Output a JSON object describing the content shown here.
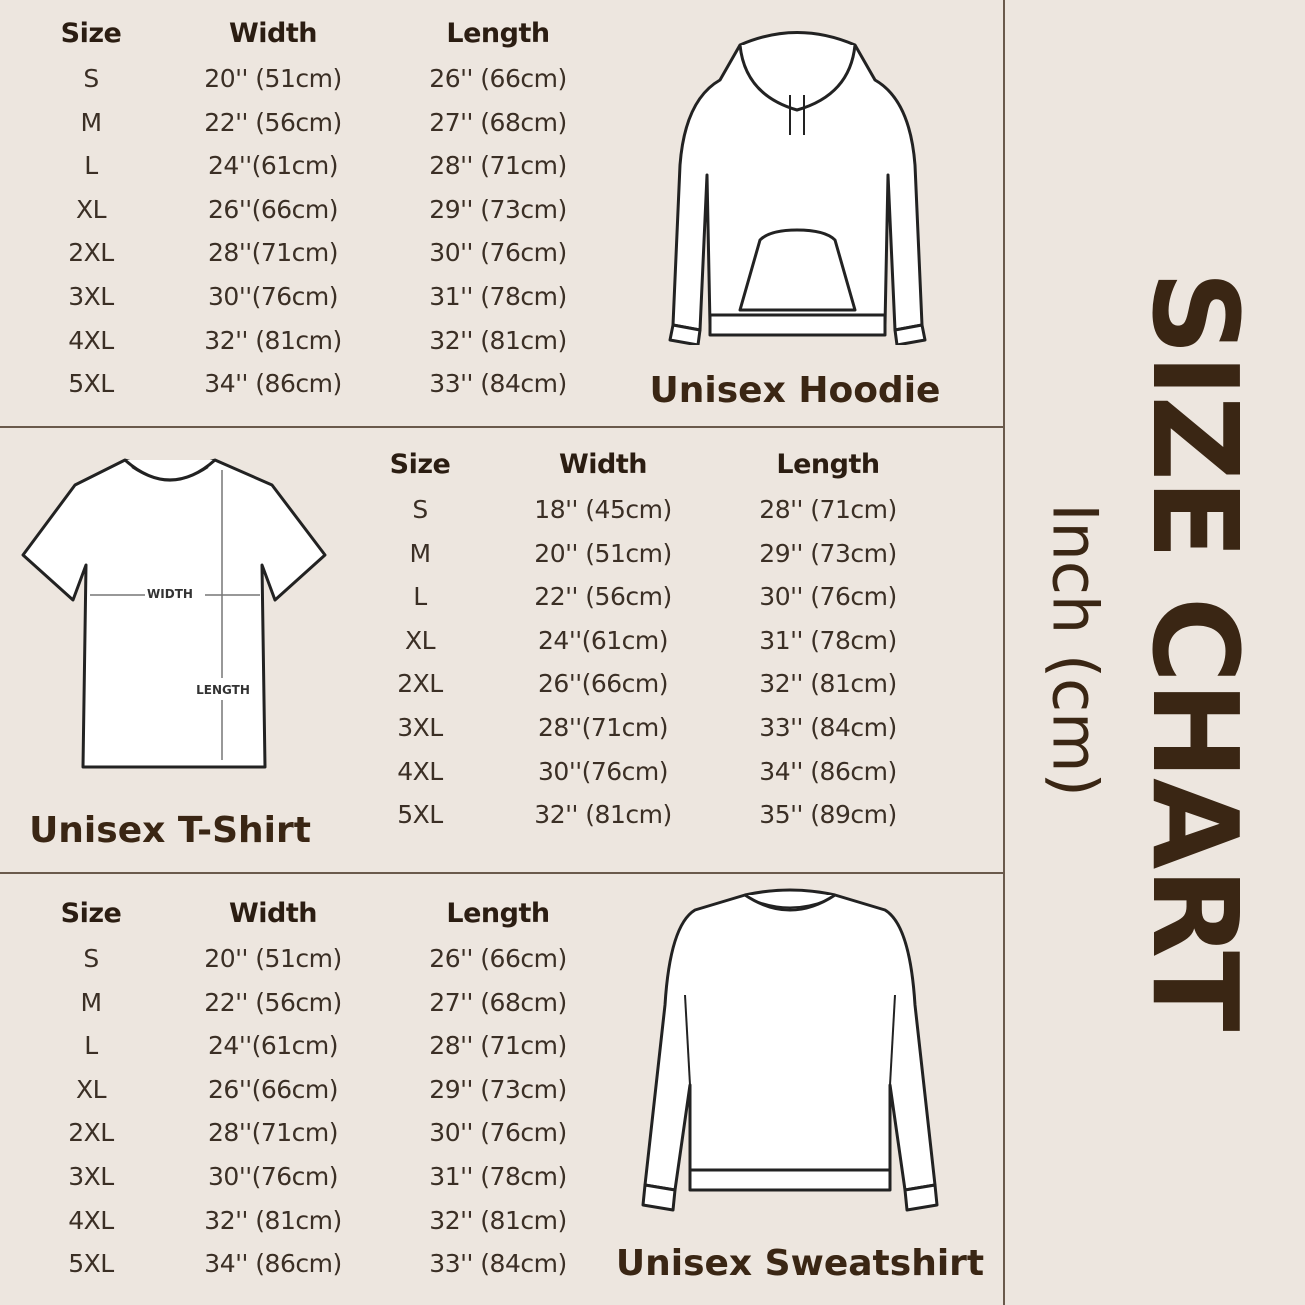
{
  "title": "SIZE CHART",
  "unit": "Inch (cm)",
  "colors": {
    "background": "#ede6df",
    "text": "#3b2f25",
    "title": "#3a2614",
    "divider": "#6a5a4c"
  },
  "sections": [
    {
      "name": "Unisex Hoodie",
      "headers": [
        "Size",
        "Width",
        "Length"
      ],
      "rows": [
        [
          "S",
          "20'' (51cm)",
          "26'' (66cm)"
        ],
        [
          "M",
          "22'' (56cm)",
          "27'' (68cm)"
        ],
        [
          "L",
          "24''(61cm)",
          "28'' (71cm)"
        ],
        [
          "XL",
          "26''(66cm)",
          "29'' (73cm)"
        ],
        [
          "2XL",
          "28''(71cm)",
          "30'' (76cm)"
        ],
        [
          "3XL",
          "30''(76cm)",
          "31'' (78cm)"
        ],
        [
          "4XL",
          "32'' (81cm)",
          "32'' (81cm)"
        ],
        [
          "5XL",
          "34'' (86cm)",
          "33'' (84cm)"
        ]
      ]
    },
    {
      "name": "Unisex T-Shirt",
      "diagram_labels": {
        "width": "WIDTH",
        "length": "LENGTH"
      },
      "headers": [
        "Size",
        "Width",
        "Length"
      ],
      "rows": [
        [
          "S",
          "18'' (45cm)",
          "28'' (71cm)"
        ],
        [
          "M",
          "20'' (51cm)",
          "29'' (73cm)"
        ],
        [
          "L",
          "22'' (56cm)",
          "30'' (76cm)"
        ],
        [
          "XL",
          "24''(61cm)",
          "31'' (78cm)"
        ],
        [
          "2XL",
          "26''(66cm)",
          "32'' (81cm)"
        ],
        [
          "3XL",
          "28''(71cm)",
          "33'' (84cm)"
        ],
        [
          "4XL",
          "30''(76cm)",
          "34'' (86cm)"
        ],
        [
          "5XL",
          "32'' (81cm)",
          "35'' (89cm)"
        ]
      ]
    },
    {
      "name": "Unisex Sweatshirt",
      "headers": [
        "Size",
        "Width",
        "Length"
      ],
      "rows": [
        [
          "S",
          "20'' (51cm)",
          "26'' (66cm)"
        ],
        [
          "M",
          "22'' (56cm)",
          "27'' (68cm)"
        ],
        [
          "L",
          "24''(61cm)",
          "28'' (71cm)"
        ],
        [
          "XL",
          "26''(66cm)",
          "29'' (73cm)"
        ],
        [
          "2XL",
          "28''(71cm)",
          "30'' (76cm)"
        ],
        [
          "3XL",
          "30''(76cm)",
          "31'' (78cm)"
        ],
        [
          "4XL",
          "32'' (81cm)",
          "32'' (81cm)"
        ],
        [
          "5XL",
          "34'' (86cm)",
          "33'' (84cm)"
        ]
      ]
    }
  ]
}
